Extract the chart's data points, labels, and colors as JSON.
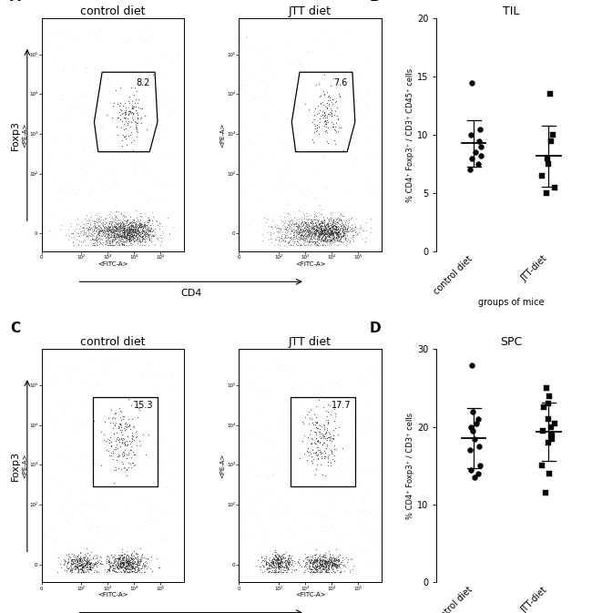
{
  "panel_A_title": "control diet",
  "panel_A2_title": "JTT diet",
  "panel_B_title": "TIL",
  "panel_C_title": "control diet",
  "panel_C2_title": "JTT diet",
  "panel_D_title": "SPC",
  "gate_A_label": "8.2",
  "gate_A2_label": "7.6",
  "gate_C_label": "15.3",
  "gate_C2_label": "17.7",
  "foxp3_label": "Foxp3",
  "cd4_label": "CD4",
  "B_ylabel": "% CD4⁺ Foxp3⁺ / CD3⁺ CD45⁺ cells",
  "D_ylabel": "% CD4⁺ Foxp3⁺ / CD3⁺ cells",
  "xlabel": "groups of mice",
  "B_ylim": [
    0,
    20
  ],
  "D_ylim": [
    0,
    30
  ],
  "B_yticks": [
    0,
    5,
    10,
    15,
    20
  ],
  "D_yticks": [
    0,
    10,
    20,
    30
  ],
  "control_diet_B": [
    9.0,
    8.0,
    7.5,
    8.5,
    10.0,
    10.5,
    9.5,
    14.5,
    8.2,
    7.0
  ],
  "jtt_diet_B": [
    10.0,
    9.5,
    7.5,
    6.5,
    5.5,
    13.5,
    8.0,
    5.0
  ],
  "control_diet_D": [
    28.0,
    22.0,
    21.0,
    20.5,
    20.0,
    19.5,
    18.5,
    17.5,
    17.0,
    15.0,
    14.5,
    14.0,
    13.5
  ],
  "jtt_diet_D": [
    25.0,
    24.0,
    23.0,
    22.5,
    21.0,
    20.5,
    20.0,
    19.5,
    19.0,
    18.5,
    18.0,
    15.0,
    14.0,
    11.5
  ],
  "bg_color": "#ffffff",
  "panel_label_fontsize": 11,
  "title_fontsize": 9,
  "tick_fontsize": 6,
  "axis_label_fontsize": 7
}
